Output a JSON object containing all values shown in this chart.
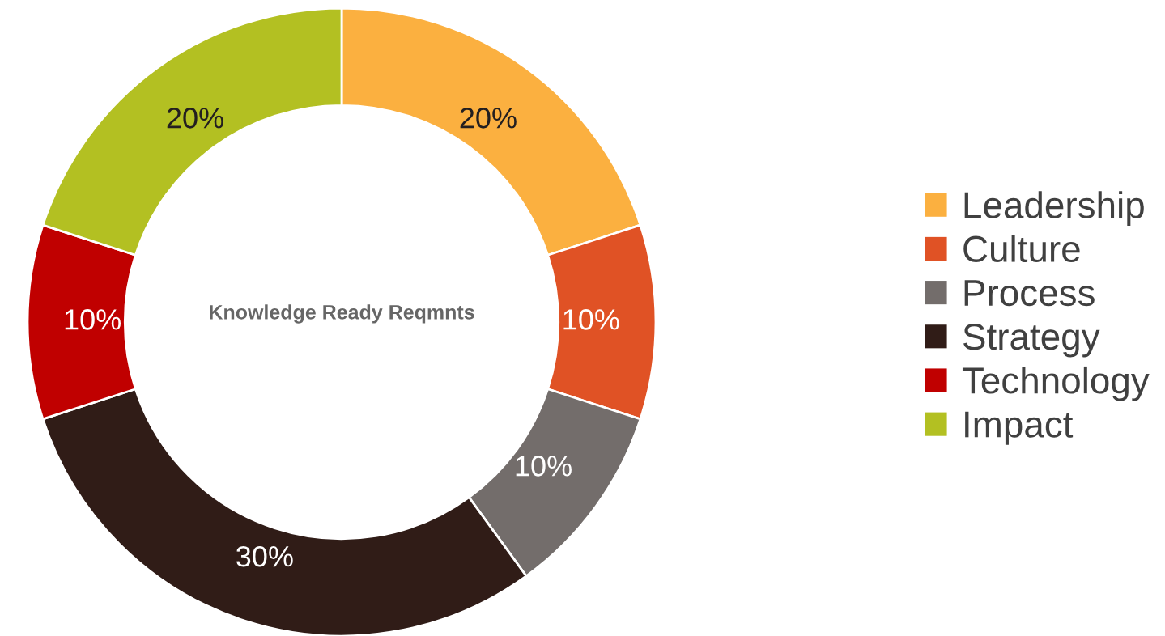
{
  "chart_data": {
    "type": "donut",
    "title": "Knowledge Ready Reqmnts",
    "categories": [
      "Leadership",
      "Culture",
      "Process",
      "Strategy",
      "Technology",
      "Impact"
    ],
    "values": [
      20,
      10,
      10,
      30,
      10,
      20
    ],
    "value_labels": [
      "20%",
      "10%",
      "10%",
      "30%",
      "10%",
      "20%"
    ],
    "colors": [
      "#fbb040",
      "#e05225",
      "#736d6b",
      "#301c17",
      "#c00000",
      "#b3c022"
    ],
    "legend": "right"
  }
}
